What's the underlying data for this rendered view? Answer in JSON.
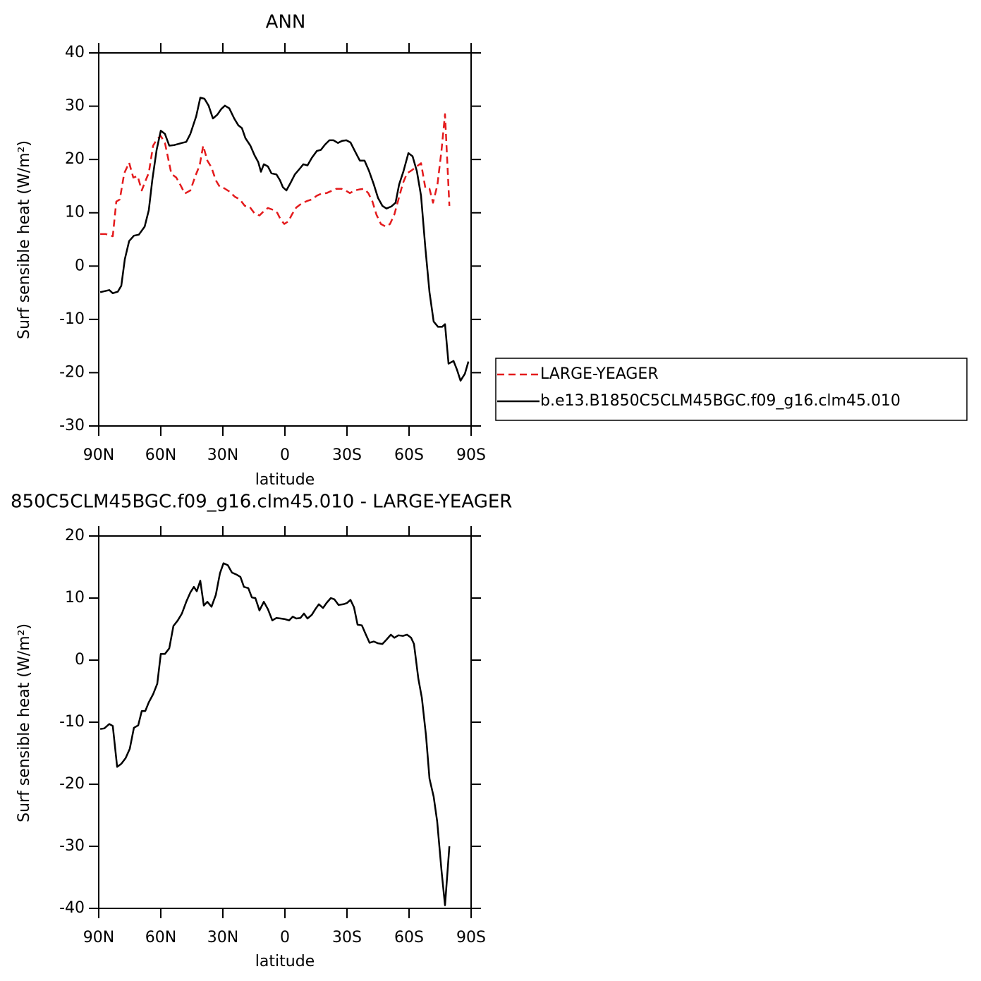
{
  "chart_data": [
    {
      "type": "line",
      "title": "ANN",
      "xlabel": "latitude",
      "ylabel": "Surf sensible heat (W/m²)",
      "xlim": [
        90,
        -90
      ],
      "xticks": [
        {
          "value": 90,
          "label": "90N"
        },
        {
          "value": 60,
          "label": "60N"
        },
        {
          "value": 30,
          "label": "30N"
        },
        0,
        {
          "value": -30,
          "label": "30S"
        },
        {
          "value": -60,
          "label": "60S"
        },
        {
          "value": -90,
          "label": "90S"
        }
      ],
      "ylim": [
        -30,
        40
      ],
      "yticks": [
        -30,
        -20,
        -10,
        0,
        10,
        20,
        30,
        40
      ],
      "legend": "right",
      "series": [
        {
          "name": "LARGE-YEAGER",
          "color": "#e41a1c",
          "line_style": "dashed",
          "x": [
            89.3,
            86.6,
            83.2,
            81.5,
            79.8,
            77.7,
            75.3,
            73.3,
            71.2,
            69.2,
            67.5,
            65.8,
            63.7,
            61.7,
            60,
            58,
            54.9,
            52.5,
            50.5,
            48.4,
            45.7,
            43.3,
            41.2,
            39.5,
            37.5,
            35.5,
            33.4,
            31.4,
            29.3,
            26.9,
            24.2,
            21.8,
            19.4,
            17,
            14.7,
            12.3,
            10.2,
            8.2,
            5.4,
            3.7,
            2,
            0.3,
            -1.7,
            -3.4,
            -5.5,
            -7.9,
            -10.6,
            -13,
            -15.4,
            -17.7,
            -20.1,
            -22.5,
            -24.9,
            -27.3,
            -29.3,
            -31.4,
            -33.8,
            -36.2,
            -38.2,
            -40.3,
            -42.3,
            -44.3,
            -46.4,
            -48.8,
            -50.8,
            -52.9,
            -54.9,
            -57,
            -59,
            -61.4,
            -63.4,
            -65.8,
            -67.9,
            -69.9,
            -71.6,
            -73.7,
            -75.7,
            -77.4,
            -79.5
          ],
          "values": [
            6,
            6,
            5.6,
            12.1,
            12.5,
            17.4,
            19.4,
            16.6,
            16.9,
            14.2,
            15.9,
            17.5,
            22.6,
            23.9,
            24.4,
            23.1,
            17.3,
            16.6,
            15.2,
            13.6,
            14.2,
            16.9,
            18.9,
            22.6,
            19.8,
            18.5,
            16.1,
            14.8,
            14.6,
            14,
            13,
            12.5,
            11.3,
            11.1,
            9.9,
            9.5,
            10.3,
            10.9,
            10.5,
            10,
            8.7,
            7.9,
            8.4,
            9.7,
            11,
            11.7,
            12.2,
            12.5,
            13.2,
            13.6,
            13.7,
            14.1,
            14.5,
            14.5,
            14.2,
            13.7,
            14.2,
            14.4,
            14.5,
            13.7,
            12.1,
            9.6,
            7.9,
            7.4,
            7.9,
            9.7,
            12.5,
            15.5,
            17.4,
            18,
            18.6,
            19.3,
            14.6,
            14.5,
            11.9,
            15.2,
            21.8,
            28.5,
            11.3
          ]
        },
        {
          "name": "b.e13.B1850C5CLM45BGC.f09_g16.clm45.010",
          "color": "#000000",
          "line_style": "solid",
          "x": [
            89.3,
            84.9,
            83.2,
            80.8,
            79.1,
            77.4,
            75.3,
            73,
            70.6,
            67.8,
            65.8,
            64.1,
            62,
            60,
            58,
            55.9,
            53.5,
            49.8,
            47.7,
            45.7,
            42.9,
            40.9,
            38.9,
            36.9,
            34.8,
            32.7,
            30.7,
            29,
            26.9,
            24.5,
            22.5,
            20.8,
            19.1,
            16.7,
            14.7,
            12.9,
            11.6,
            10.2,
            8.2,
            6.5,
            4.1,
            2.4,
            1,
            -0.7,
            -2.7,
            -4.8,
            -6.8,
            -8.9,
            -10.9,
            -13,
            -15.4,
            -17.4,
            -19.4,
            -21.5,
            -23.5,
            -25.6,
            -27.6,
            -29.7,
            -31.7,
            -33.8,
            -36.2,
            -38.5,
            -40.6,
            -43,
            -45,
            -47.1,
            -49.1,
            -51.5,
            -53.5,
            -55.2,
            -57.3,
            -59.7,
            -61.7,
            -63.8,
            -65.8,
            -67.9,
            -69.9,
            -71.9,
            -74,
            -76,
            -77.4,
            -79.1,
            -81.5,
            -83.2,
            -84.9,
            -87,
            -88.7
          ],
          "values": [
            -4.9,
            -4.5,
            -5.1,
            -4.8,
            -3.7,
            1.3,
            4.7,
            5.7,
            5.9,
            7.4,
            10.5,
            16.2,
            21.8,
            25.4,
            24.8,
            22.6,
            22.7,
            23.1,
            23.3,
            24.8,
            28.1,
            31.6,
            31.4,
            30.1,
            27.7,
            28.4,
            29.5,
            30.1,
            29.6,
            27.7,
            26.4,
            25.9,
            24,
            22.6,
            20.8,
            19.5,
            17.7,
            19.1,
            18.7,
            17.4,
            17.2,
            16.1,
            14.8,
            14.2,
            15.6,
            17.2,
            18.1,
            19.1,
            18.9,
            20.3,
            21.6,
            21.8,
            22.8,
            23.6,
            23.6,
            23.1,
            23.5,
            23.6,
            23.2,
            21.6,
            19.8,
            19.8,
            17.9,
            15.3,
            12.8,
            11.3,
            10.8,
            11.2,
            11.9,
            15.3,
            17.8,
            21.2,
            20.6,
            17.8,
            13.2,
            3.3,
            -4.9,
            -10.4,
            -11.4,
            -11.4,
            -10.9,
            -18.3,
            -17.8,
            -19.5,
            -21.5,
            -20.2,
            -17.9
          ]
        }
      ]
    },
    {
      "type": "line",
      "title": "850C5CLM45BGC.f09_g16.clm45.010 - LARGE-YEAGER",
      "xlabel": "latitude",
      "ylabel": "Surf sensible heat (W/m²)",
      "xlim": [
        90,
        -90
      ],
      "xticks": [
        {
          "value": 90,
          "label": "90N"
        },
        {
          "value": 60,
          "label": "60N"
        },
        {
          "value": 30,
          "label": "30N"
        },
        0,
        {
          "value": -30,
          "label": "30S"
        },
        {
          "value": -60,
          "label": "60S"
        },
        {
          "value": -90,
          "label": "90S"
        }
      ],
      "ylim": [
        -40,
        20
      ],
      "yticks": [
        -40,
        -30,
        -20,
        -10,
        0,
        10,
        20
      ],
      "color": "#000000",
      "x": [
        89.3,
        87.3,
        84.9,
        83.2,
        81.1,
        79.1,
        77,
        75,
        73,
        70.9,
        69.2,
        67.5,
        65.8,
        63.7,
        61.7,
        60,
        58,
        55.9,
        53.9,
        51.8,
        49.8,
        47.7,
        45.7,
        44,
        42.6,
        40.9,
        39.2,
        37.5,
        35.5,
        33.4,
        31.4,
        29.7,
        27.6,
        25.6,
        23.5,
        21.5,
        19.8,
        17.7,
        16,
        14.3,
        12.3,
        10.2,
        8.2,
        6.1,
        4.1,
        2,
        0,
        -2,
        -3.8,
        -5.5,
        -7.5,
        -9.2,
        -10.9,
        -13,
        -14.7,
        -16.4,
        -18.4,
        -20.1,
        -22.2,
        -23.9,
        -25.9,
        -28.3,
        -30,
        -31.7,
        -33.4,
        -35.1,
        -37.2,
        -38.9,
        -40.9,
        -43,
        -45,
        -47.1,
        -49.1,
        -51.2,
        -52.9,
        -54.9,
        -57,
        -59,
        -61,
        -62.4,
        -64.5,
        -66.2,
        -68.2,
        -69.9,
        -71.9,
        -73.6,
        -75.7,
        -77.4,
        -79.5
      ],
      "values": [
        -11.1,
        -11,
        -10.3,
        -10.6,
        -17.2,
        -16.7,
        -15.8,
        -14.3,
        -10.9,
        -10.5,
        -8.2,
        -8.2,
        -6.8,
        -5.5,
        -3.8,
        1,
        1,
        1.9,
        5.5,
        6.4,
        7.5,
        9.4,
        10.9,
        11.8,
        11.1,
        12.8,
        8.8,
        9.4,
        8.6,
        10.5,
        14,
        15.6,
        15.3,
        14.1,
        13.8,
        13.4,
        11.8,
        11.6,
        10.1,
        10,
        8,
        9.4,
        8.2,
        6.4,
        6.8,
        6.7,
        6.6,
        6.4,
        7,
        6.7,
        6.8,
        7.5,
        6.7,
        7.3,
        8.2,
        9,
        8.4,
        9.2,
        10,
        9.8,
        8.9,
        9,
        9.2,
        9.7,
        8.5,
        5.7,
        5.6,
        4.3,
        2.8,
        3,
        2.7,
        2.6,
        3.3,
        4.1,
        3.6,
        4,
        3.9,
        4.1,
        3.6,
        2.6,
        -3,
        -6.1,
        -12.2,
        -19.1,
        -22,
        -26,
        -34,
        -39.5,
        -30
      ]
    }
  ]
}
